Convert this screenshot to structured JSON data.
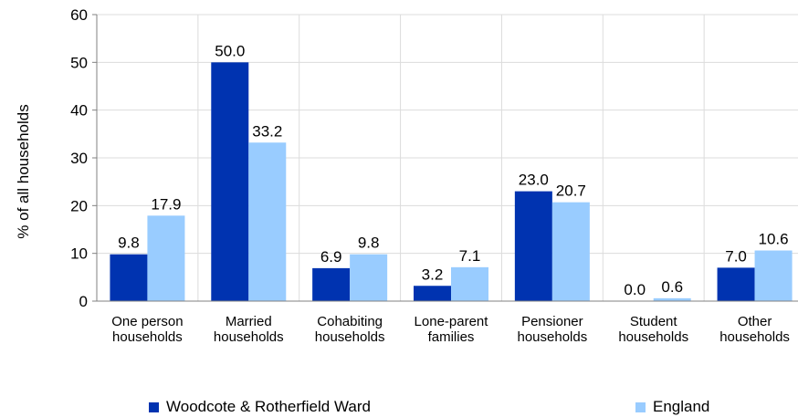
{
  "chart_data": {
    "type": "bar",
    "ylabel": "% of all households",
    "ylim": [
      0,
      60
    ],
    "yticks": [
      0,
      10,
      20,
      30,
      40,
      50,
      60
    ],
    "grid": true,
    "legend_position": "bottom",
    "categories": [
      [
        "One person",
        "households"
      ],
      [
        "Married",
        "households"
      ],
      [
        "Cohabiting",
        "households"
      ],
      [
        "Lone-parent",
        "families"
      ],
      [
        "Pensioner",
        "households"
      ],
      [
        "Student",
        "households"
      ],
      [
        "Other",
        "households"
      ]
    ],
    "series": [
      {
        "name": "Woodcote & Rotherfield Ward",
        "color": "#0033b0",
        "values": [
          9.8,
          50.0,
          6.9,
          3.2,
          23.0,
          0.0,
          7.0
        ]
      },
      {
        "name": "England",
        "color": "#99ccff",
        "values": [
          17.9,
          33.2,
          9.8,
          7.1,
          20.7,
          0.6,
          10.6
        ]
      }
    ]
  }
}
